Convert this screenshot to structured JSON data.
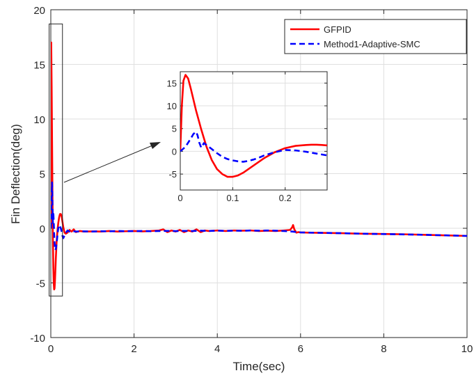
{
  "chart_data": [
    {
      "type": "line",
      "role": "main",
      "title": "",
      "xlabel": "Time(sec)",
      "ylabel": "Fin Deflection(deg)",
      "xlim": [
        0,
        10
      ],
      "ylim": [
        -10,
        20
      ],
      "xticks": [
        0,
        2,
        4,
        6,
        8,
        10
      ],
      "yticks": [
        -10,
        -5,
        0,
        5,
        10,
        15,
        20
      ],
      "grid": true,
      "legend_position": "top-right",
      "series": [
        {
          "name": "GFPID",
          "color": "#ff0000",
          "style": "solid",
          "x": [
            0,
            0.005,
            0.01,
            0.02,
            0.03,
            0.04,
            0.05,
            0.06,
            0.07,
            0.08,
            0.09,
            0.1,
            0.11,
            0.12,
            0.14,
            0.16,
            0.18,
            0.2,
            0.22,
            0.24,
            0.26,
            0.28,
            0.3,
            0.33,
            0.36,
            0.4,
            0.45,
            0.5,
            0.55,
            0.6,
            0.7,
            0.8,
            1.0,
            1.2,
            1.4,
            1.6,
            1.8,
            2.0,
            2.2,
            2.4,
            2.6,
            2.7,
            2.8,
            2.9,
            3.0,
            3.1,
            3.2,
            3.3,
            3.4,
            3.5,
            3.6,
            3.7,
            3.8,
            4.0,
            4.2,
            4.4,
            4.6,
            4.8,
            5.0,
            5.2,
            5.4,
            5.6,
            5.75,
            5.8,
            5.82,
            5.85,
            5.9,
            5.95,
            6.0,
            6.2,
            6.5,
            7.0,
            7.5,
            8.0,
            8.5,
            9.0,
            9.5,
            10.0
          ],
          "y": [
            0,
            12,
            17,
            13,
            8,
            3,
            -1,
            -3.5,
            -5,
            -5.6,
            -5.5,
            -4.8,
            -3.8,
            -2.8,
            -1.2,
            -0.2,
            0.5,
            1.0,
            1.3,
            1.3,
            1.1,
            0.6,
            0.1,
            -0.4,
            -0.5,
            -0.4,
            -0.15,
            -0.3,
            -0.1,
            -0.35,
            -0.25,
            -0.3,
            -0.28,
            -0.3,
            -0.25,
            -0.3,
            -0.27,
            -0.25,
            -0.28,
            -0.25,
            -0.2,
            -0.1,
            -0.35,
            -0.2,
            -0.3,
            -0.15,
            -0.35,
            -0.2,
            -0.3,
            -0.1,
            -0.35,
            -0.2,
            -0.25,
            -0.2,
            -0.25,
            -0.2,
            -0.22,
            -0.2,
            -0.25,
            -0.22,
            -0.25,
            -0.2,
            -0.15,
            0.1,
            0.3,
            -0.1,
            -0.4,
            -0.35,
            -0.38,
            -0.4,
            -0.42,
            -0.45,
            -0.5,
            -0.52,
            -0.55,
            -0.6,
            -0.65,
            -0.7
          ]
        },
        {
          "name": "Method1-Adaptive-SMC",
          "color": "#0000ff",
          "style": "dashed",
          "x": [
            0,
            0.01,
            0.02,
            0.03,
            0.035,
            0.04,
            0.05,
            0.06,
            0.07,
            0.08,
            0.09,
            0.1,
            0.11,
            0.12,
            0.14,
            0.16,
            0.18,
            0.2,
            0.22,
            0.24,
            0.26,
            0.28,
            0.3,
            0.35,
            0.4,
            0.45,
            0.5,
            0.6,
            0.8,
            1.0,
            1.2,
            1.4,
            1.6,
            1.8,
            2.0,
            2.2,
            2.4,
            2.6,
            2.8,
            3.0,
            3.2,
            3.4,
            3.6,
            3.8,
            4.0,
            4.2,
            4.4,
            4.6,
            4.8,
            5.0,
            5.2,
            5.4,
            5.6,
            5.8,
            6.0,
            6.5,
            7.0,
            7.5,
            8.0,
            8.5,
            9.0,
            9.5,
            10.0
          ],
          "y": [
            0,
            1.0,
            2.8,
            4.2,
            3.5,
            2.0,
            0.5,
            1.5,
            0.6,
            -0.5,
            -1.3,
            -1.8,
            -2.0,
            -1.9,
            -1.4,
            -0.6,
            0.0,
            0.3,
            0.2,
            0.0,
            -0.3,
            -0.7,
            -0.9,
            -0.5,
            -0.2,
            -0.3,
            -0.25,
            -0.3,
            -0.28,
            -0.3,
            -0.27,
            -0.28,
            -0.25,
            -0.27,
            -0.26,
            -0.25,
            -0.27,
            -0.25,
            -0.24,
            -0.26,
            -0.24,
            -0.25,
            -0.22,
            -0.24,
            -0.22,
            -0.24,
            -0.22,
            -0.23,
            -0.2,
            -0.22,
            -0.2,
            -0.22,
            -0.25,
            -0.3,
            -0.38,
            -0.42,
            -0.45,
            -0.5,
            -0.53,
            -0.56,
            -0.6,
            -0.65,
            -0.7
          ]
        }
      ]
    },
    {
      "type": "line",
      "role": "inset",
      "title": "",
      "xlabel": "",
      "ylabel": "",
      "xlim": [
        0,
        0.28
      ],
      "ylim": [
        -8.5,
        17.5
      ],
      "xticks": [
        0,
        0.1,
        0.2
      ],
      "yticks": [
        -5,
        0,
        5,
        10,
        15
      ],
      "grid": true,
      "series": [
        {
          "name": "GFPID",
          "color": "#ff0000",
          "style": "solid",
          "x": [
            0,
            0.003,
            0.006,
            0.01,
            0.015,
            0.02,
            0.03,
            0.04,
            0.05,
            0.06,
            0.07,
            0.08,
            0.09,
            0.1,
            0.11,
            0.12,
            0.13,
            0.14,
            0.15,
            0.16,
            0.18,
            0.2,
            0.22,
            0.24,
            0.25,
            0.26,
            0.27,
            0.28
          ],
          "y": [
            0,
            10,
            15.5,
            16.8,
            16.0,
            13.8,
            9.0,
            4.8,
            1.0,
            -1.9,
            -3.9,
            -5.0,
            -5.6,
            -5.6,
            -5.3,
            -4.7,
            -3.9,
            -3.1,
            -2.3,
            -1.5,
            -0.2,
            0.7,
            1.2,
            1.4,
            1.45,
            1.45,
            1.4,
            1.3
          ]
        },
        {
          "name": "Method1-Adaptive-SMC",
          "color": "#0000ff",
          "style": "dashed",
          "x": [
            0,
            0.01,
            0.02,
            0.025,
            0.03,
            0.033,
            0.036,
            0.04,
            0.045,
            0.05,
            0.06,
            0.07,
            0.08,
            0.09,
            0.1,
            0.11,
            0.12,
            0.13,
            0.14,
            0.15,
            0.16,
            0.18,
            0.2,
            0.22,
            0.24,
            0.26,
            0.28
          ],
          "y": [
            0,
            1.0,
            2.8,
            3.8,
            4.3,
            3.5,
            2.0,
            0.8,
            1.8,
            1.4,
            0.5,
            -0.4,
            -1.2,
            -1.7,
            -2.0,
            -2.2,
            -2.3,
            -2.1,
            -1.8,
            -1.4,
            -0.9,
            -0.2,
            0.3,
            0.2,
            -0.1,
            -0.5,
            -0.9
          ]
        }
      ]
    }
  ]
}
